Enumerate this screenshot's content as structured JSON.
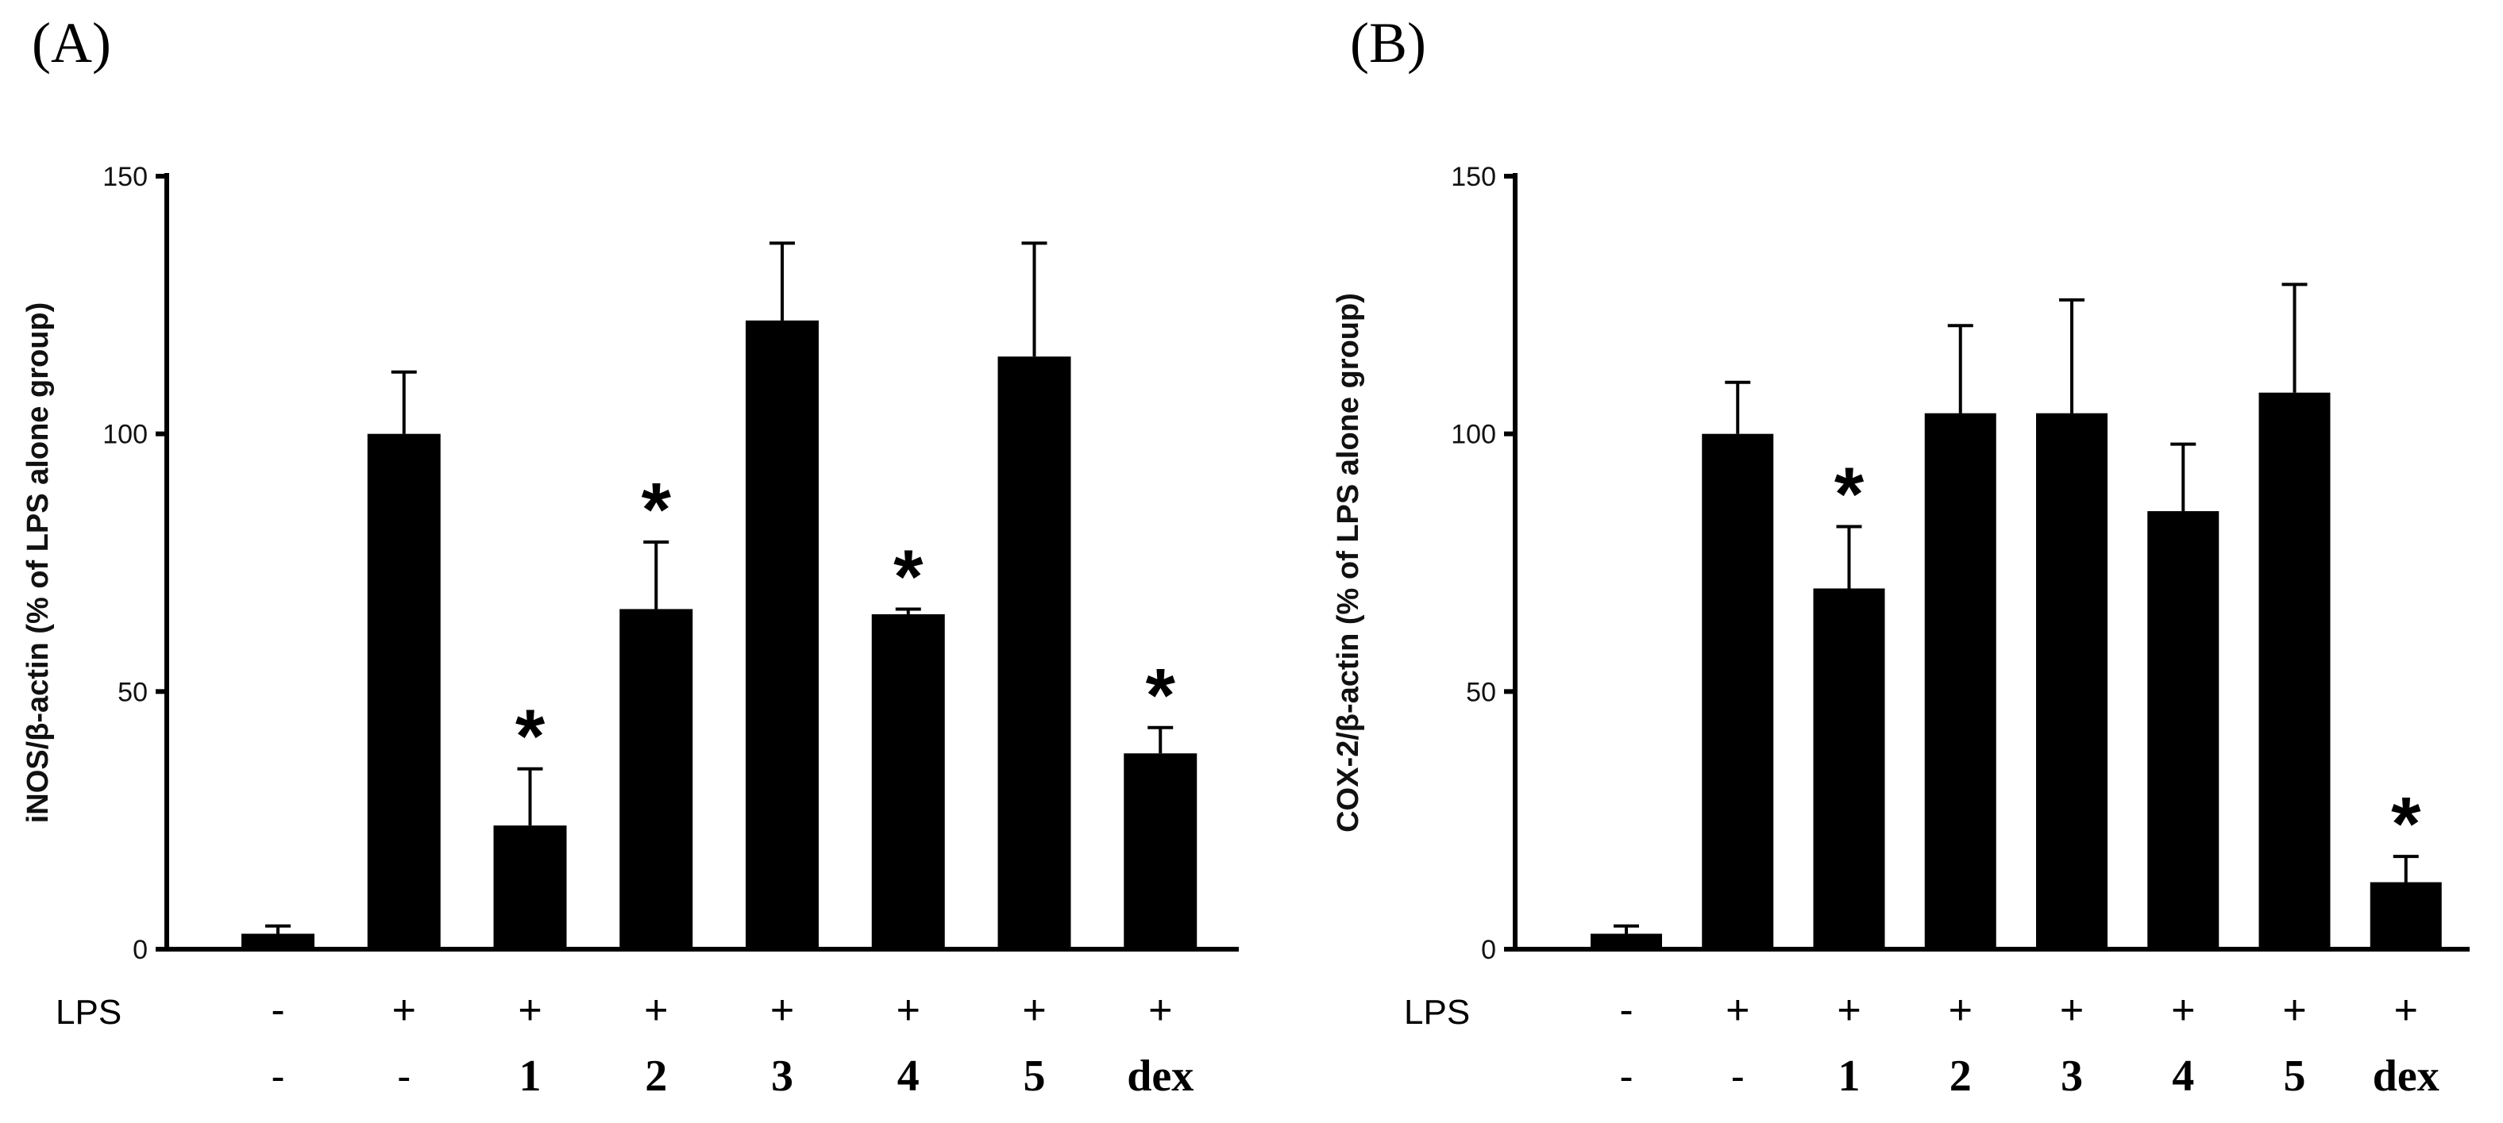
{
  "chart_data": [
    {
      "type": "bar",
      "panel_label": "(A)",
      "ylabel": "iNOS/β-actin (% of LPS alone group)",
      "ylim": [
        0,
        150
      ],
      "yticks": [
        "0",
        "50",
        "100",
        "150"
      ],
      "lps_label": "LPS",
      "lps_row": [
        "-",
        "+",
        "+",
        "+",
        "+",
        "+",
        "+",
        "+"
      ],
      "categories": [
        "-",
        "-",
        "1",
        "2",
        "3",
        "4",
        "5",
        "dex"
      ],
      "values": [
        3,
        100,
        24,
        66,
        122,
        65,
        115,
        38
      ],
      "errors": [
        1.5,
        12,
        11,
        13,
        15,
        1,
        22,
        5
      ],
      "significant": [
        "",
        "",
        "*",
        "*",
        "",
        "*",
        "",
        "*"
      ]
    },
    {
      "type": "bar",
      "panel_label": "(B)",
      "ylabel": "COX-2/β-actin (% of LPS alone group)",
      "ylim": [
        0,
        150
      ],
      "yticks": [
        "0",
        "50",
        "100",
        "150"
      ],
      "lps_label": "LPS",
      "lps_row": [
        "-",
        "+",
        "+",
        "+",
        "+",
        "+",
        "+",
        "+"
      ],
      "categories": [
        "-",
        "-",
        "1",
        "2",
        "3",
        "4",
        "5",
        "dex"
      ],
      "values": [
        3,
        100,
        70,
        104,
        104,
        85,
        108,
        13
      ],
      "errors": [
        1.5,
        10,
        12,
        17,
        22,
        13,
        21,
        5
      ],
      "significant": [
        "",
        "",
        "*",
        "",
        "",
        "",
        "",
        "*"
      ]
    }
  ]
}
